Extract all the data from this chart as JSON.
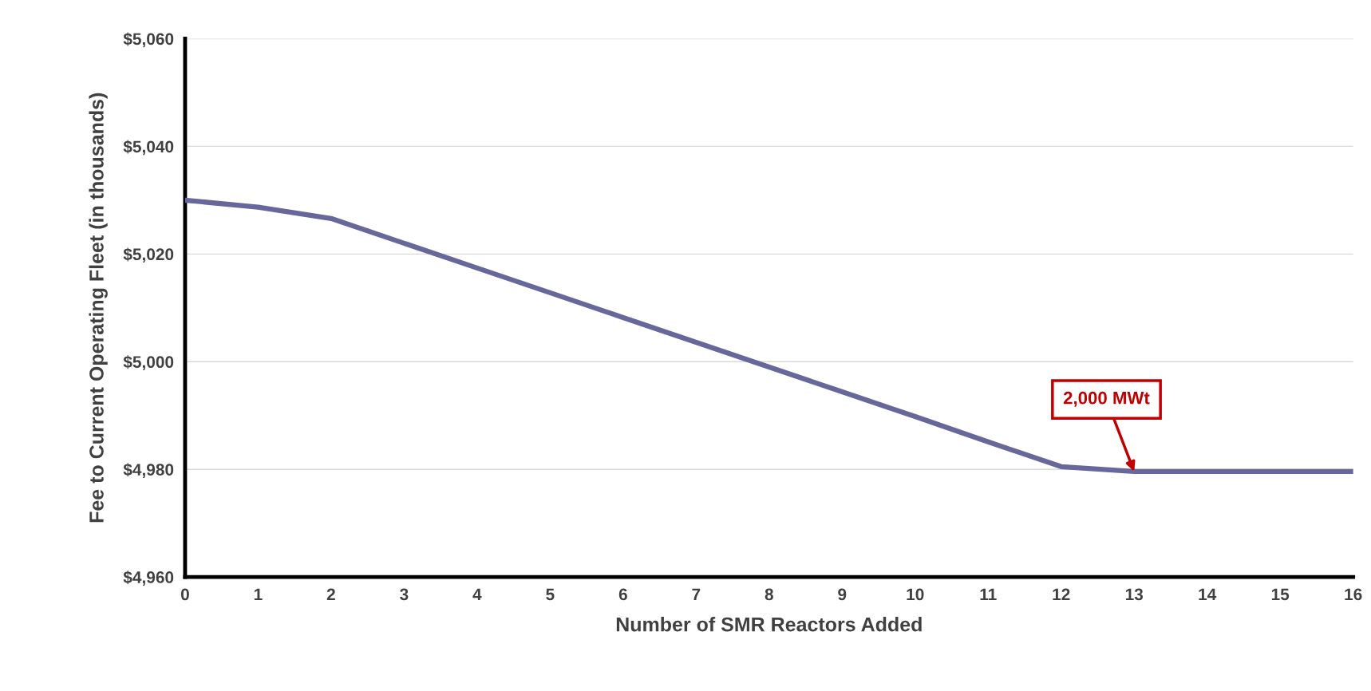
{
  "chart_data": {
    "type": "line",
    "xlabel": "Number of SMR Reactors Added",
    "ylabel": "Fee to Current Operating Fleet (in thousands)",
    "x": [
      0,
      1,
      2,
      3,
      4,
      5,
      6,
      7,
      8,
      9,
      10,
      11,
      12,
      13,
      14,
      15,
      16
    ],
    "series": [
      {
        "color": "#67679b",
        "values": [
          5030.0,
          5028.7,
          5026.6,
          5022.0,
          5017.4,
          5012.8,
          5008.2,
          5003.6,
          4999.0,
          4994.4,
          4989.8,
          4985.1,
          4980.5,
          4979.6,
          4979.6,
          4979.6,
          4979.6
        ]
      }
    ],
    "xlim": [
      0,
      16
    ],
    "xticks": [
      0,
      1,
      2,
      3,
      4,
      5,
      6,
      7,
      8,
      9,
      10,
      11,
      12,
      13,
      14,
      15,
      16
    ],
    "ylim": [
      4960,
      5060
    ],
    "yticks": [
      {
        "value": 4960,
        "label": "$4,960"
      },
      {
        "value": 4980,
        "label": "$4,980"
      },
      {
        "value": 5000,
        "label": "$5,000"
      },
      {
        "value": 5020,
        "label": "$5,020"
      },
      {
        "value": 5040,
        "label": "$5,040"
      },
      {
        "value": 5060,
        "label": "$5,060"
      }
    ],
    "grid": "y",
    "marker": "none",
    "line_style": "solid",
    "annotations": [
      {
        "text": "2,000 MWt",
        "x": 13,
        "y": 4979.6
      }
    ]
  }
}
